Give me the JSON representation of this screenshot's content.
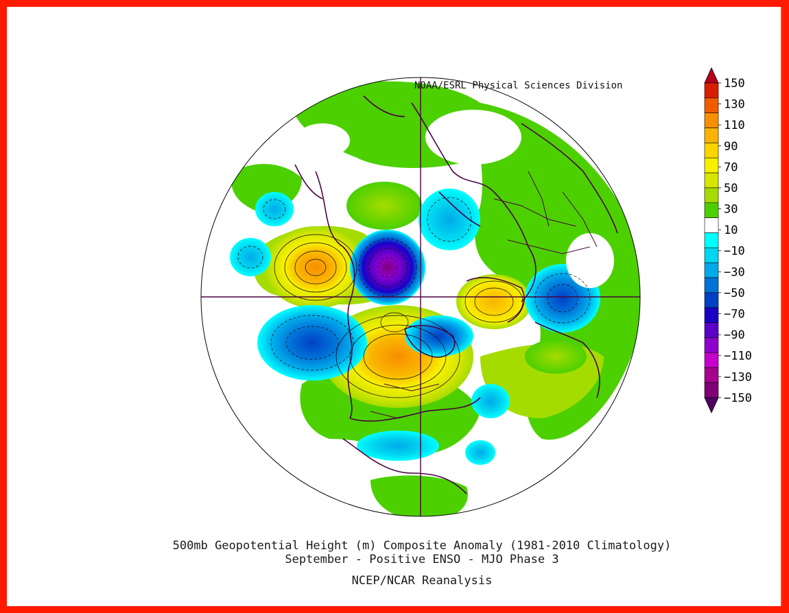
{
  "header": {
    "credit": "NOAA/ESRL Physical Sciences Division"
  },
  "footer": {
    "line1": "500mb Geopotential Height (m) Composite Anomaly (1981-2010 Climatology)",
    "line2": "September - Positive ENSO - MJO Phase 3",
    "line3": "NCEP/NCAR Reanalysis"
  },
  "colorbar": {
    "labels": [
      "150",
      "130",
      "110",
      "90",
      "70",
      "50",
      "30",
      "10",
      "-10",
      "-30",
      "-50",
      "-70",
      "-90",
      "-110",
      "-130",
      "-150"
    ],
    "colors": [
      "#b5001b",
      "#d81e00",
      "#f25c00",
      "#f88e00",
      "#fab400",
      "#fcd400",
      "#f7f000",
      "#d7e600",
      "#a5dc00",
      "#4cd000",
      "#ffffff",
      "#00ffff",
      "#00d6f0",
      "#00aaea",
      "#0072d8",
      "#0040c6",
      "#1a00c6",
      "#5a00c8",
      "#8e00cc",
      "#c600cc",
      "#a8008e",
      "#7e0074",
      "#500060"
    ]
  },
  "map": {
    "projection": "polar stereographic (North Pole)",
    "anomaly_features": [
      {
        "name": "west-pacific-positive",
        "sign": "positive",
        "peak": "90"
      },
      {
        "name": "alaska-negative",
        "sign": "negative",
        "peak": "-110"
      },
      {
        "name": "north-america-positive",
        "sign": "positive",
        "peak": "90"
      },
      {
        "name": "north-pacific-negative",
        "sign": "negative",
        "peak": "-70"
      },
      {
        "name": "scandinavia-positive",
        "sign": "positive",
        "peak": "90"
      },
      {
        "name": "russia-negative",
        "sign": "negative",
        "peak": "-70"
      }
    ]
  }
}
